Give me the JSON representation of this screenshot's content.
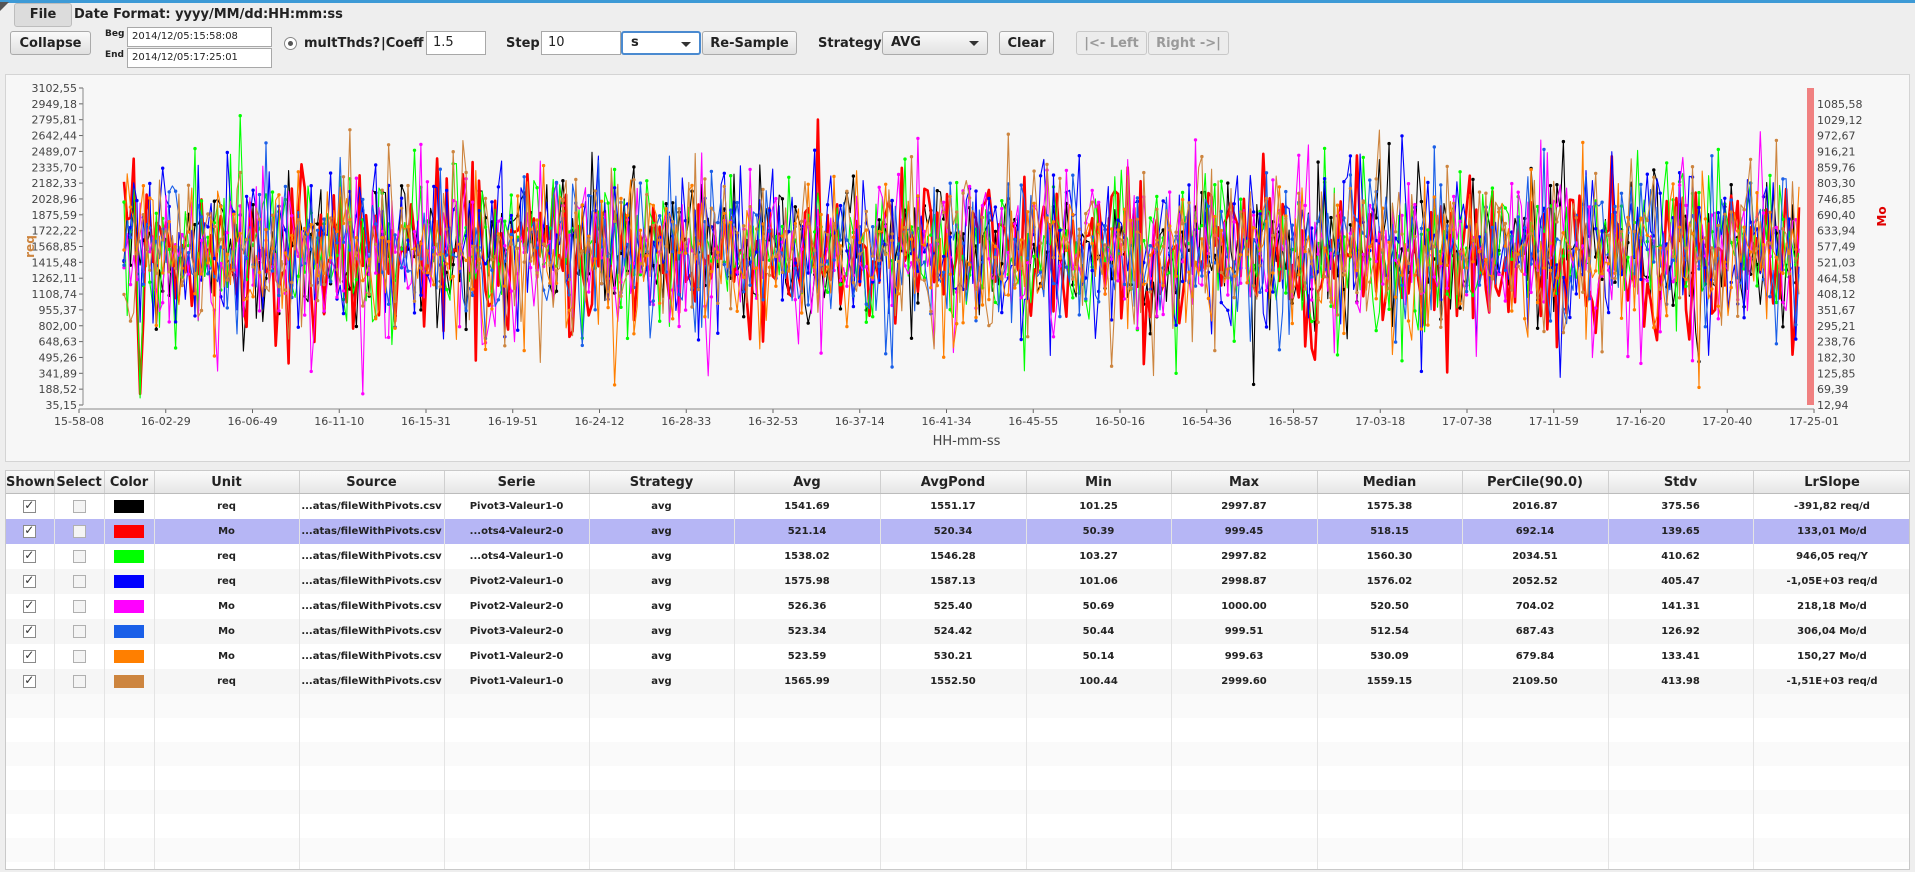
{
  "menu": {
    "file_label": "File",
    "date_format": "Date Format: yyyy/MM/dd:HH:mm:ss"
  },
  "toolbar": {
    "collapse_label": "Collapse",
    "begin_label": "Beg",
    "begin_value": "2014/12/05:15:58:08",
    "end_label": "End",
    "end_value": "2014/12/05:17:25:01",
    "multthds_label": "multThds?",
    "coeff_label": "|Coeff",
    "coeff_value": "1.5",
    "step_label": "Step",
    "step_value": "10",
    "step_unit": "s",
    "resample_label": "Re-Sample",
    "strategy_label": "Strategy",
    "strategy_value": "AVG",
    "clear_label": "Clear",
    "left_label": "|<- Left",
    "right_label": "Right ->|"
  },
  "chart_data": {
    "type": "line",
    "xlabel": "HH-mm-ss",
    "ylabel_left": "req",
    "ylabel_right": "Mo",
    "x_ticks": [
      "15-58-08",
      "16-02-29",
      "16-06-49",
      "16-11-10",
      "16-15-31",
      "16-19-51",
      "16-24-12",
      "16-28-33",
      "16-32-53",
      "16-37-14",
      "16-41-34",
      "16-45-55",
      "16-50-16",
      "16-54-36",
      "16-58-57",
      "17-03-18",
      "17-07-38",
      "17-11-59",
      "17-16-20",
      "17-20-40",
      "17-25-01"
    ],
    "y_left_ticks": [
      "3102,55",
      "2949,18",
      "2795,81",
      "2642,44",
      "2489,07",
      "2335,70",
      "2182,33",
      "2028,96",
      "1875,59",
      "1722,22",
      "1568,85",
      "1415,48",
      "1262,11",
      "1108,74",
      "955,37",
      "802,00",
      "648,63",
      "495,26",
      "341,89",
      "188,52",
      "35,15"
    ],
    "y_right_ticks": [
      "1085,58",
      "1029,12",
      "972,67",
      "916,21",
      "859,76",
      "803,30",
      "746,85",
      "690,40",
      "633,94",
      "577,49",
      "521,03",
      "464,58",
      "408,12",
      "351,67",
      "295,21",
      "238,76",
      "182,30",
      "125,85",
      "69,39",
      "12,94"
    ],
    "ylim_left": [
      35.15,
      3102.55
    ],
    "ylim_right": [
      12.94,
      1085.58
    ],
    "points_per_series": 520,
    "series": [
      {
        "color": "#000000",
        "axis": "left",
        "mean": 1541.69,
        "std": 375.56,
        "min": 101.25,
        "max": 2997.87
      },
      {
        "color": "#ff0000",
        "axis": "right",
        "mean": 521.14,
        "std": 139.65,
        "min": 50.39,
        "max": 999.45
      },
      {
        "color": "#00ff00",
        "axis": "left",
        "mean": 1538.02,
        "std": 410.62,
        "min": 103.27,
        "max": 2997.82
      },
      {
        "color": "#0000ff",
        "axis": "left",
        "mean": 1575.98,
        "std": 405.47,
        "min": 101.06,
        "max": 2998.87
      },
      {
        "color": "#ff00ff",
        "axis": "right",
        "mean": 526.36,
        "std": 141.31,
        "min": 50.69,
        "max": 1000.0
      },
      {
        "color": "#1a5fe8",
        "axis": "right",
        "mean": 523.34,
        "std": 126.92,
        "min": 50.44,
        "max": 999.51
      },
      {
        "color": "#ff7f00",
        "axis": "right",
        "mean": 523.59,
        "std": 133.41,
        "min": 50.14,
        "max": 999.63
      },
      {
        "color": "#cd853f",
        "axis": "left",
        "mean": 1565.99,
        "std": 413.98,
        "min": 100.44,
        "max": 2999.6
      }
    ]
  },
  "table": {
    "headers": [
      "Shown",
      "Select",
      "Color",
      "Unit",
      "Source",
      "Serie",
      "Strategy",
      "Avg",
      "AvgPond",
      "Min",
      "Max",
      "Median",
      "PerCile(90.0)",
      "Stdv",
      "LrSlope"
    ],
    "rows": [
      {
        "shown": true,
        "color": "#000000",
        "unit": "req",
        "source": "...atas/fileWithPivots.csv",
        "serie": "Pivot3-Valeur1-0",
        "strategy": "avg",
        "avg": "1541.69",
        "avgpond": "1551.17",
        "min": "101.25",
        "max": "2997.87",
        "median": "1575.38",
        "percile": "2016.87",
        "stdv": "375.56",
        "lrslope": "-391,82 req/d",
        "selected": false
      },
      {
        "shown": true,
        "color": "#ff0000",
        "unit": "Mo",
        "source": "...atas/fileWithPivots.csv",
        "serie": "...ots4-Valeur2-0",
        "strategy": "avg",
        "avg": "521.14",
        "avgpond": "520.34",
        "min": "50.39",
        "max": "999.45",
        "median": "518.15",
        "percile": "692.14",
        "stdv": "139.65",
        "lrslope": "133,01 Mo/d",
        "selected": true
      },
      {
        "shown": true,
        "color": "#00ff00",
        "unit": "req",
        "source": "...atas/fileWithPivots.csv",
        "serie": "...ots4-Valeur1-0",
        "strategy": "avg",
        "avg": "1538.02",
        "avgpond": "1546.28",
        "min": "103.27",
        "max": "2997.82",
        "median": "1560.30",
        "percile": "2034.51",
        "stdv": "410.62",
        "lrslope": "946,05 req/Y",
        "selected": false
      },
      {
        "shown": true,
        "color": "#0000ff",
        "unit": "req",
        "source": "...atas/fileWithPivots.csv",
        "serie": "Pivot2-Valeur1-0",
        "strategy": "avg",
        "avg": "1575.98",
        "avgpond": "1587.13",
        "min": "101.06",
        "max": "2998.87",
        "median": "1576.02",
        "percile": "2052.52",
        "stdv": "405.47",
        "lrslope": "-1,05E+03 req/d",
        "selected": false
      },
      {
        "shown": true,
        "color": "#ff00ff",
        "unit": "Mo",
        "source": "...atas/fileWithPivots.csv",
        "serie": "Pivot2-Valeur2-0",
        "strategy": "avg",
        "avg": "526.36",
        "avgpond": "525.40",
        "min": "50.69",
        "max": "1000.00",
        "median": "520.50",
        "percile": "704.02",
        "stdv": "141.31",
        "lrslope": "218,18 Mo/d",
        "selected": false
      },
      {
        "shown": true,
        "color": "#1a5fe8",
        "unit": "Mo",
        "source": "...atas/fileWithPivots.csv",
        "serie": "Pivot3-Valeur2-0",
        "strategy": "avg",
        "avg": "523.34",
        "avgpond": "524.42",
        "min": "50.44",
        "max": "999.51",
        "median": "512.54",
        "percile": "687.43",
        "stdv": "126.92",
        "lrslope": "306,04 Mo/d",
        "selected": false
      },
      {
        "shown": true,
        "color": "#ff7f00",
        "unit": "Mo",
        "source": "...atas/fileWithPivots.csv",
        "serie": "Pivot1-Valeur2-0",
        "strategy": "avg",
        "avg": "523.59",
        "avgpond": "530.21",
        "min": "50.14",
        "max": "999.63",
        "median": "530.09",
        "percile": "679.84",
        "stdv": "133.41",
        "lrslope": "150,27 Mo/d",
        "selected": false
      },
      {
        "shown": true,
        "color": "#cd853f",
        "unit": "req",
        "source": "...atas/fileWithPivots.csv",
        "serie": "Pivot1-Valeur1-0",
        "strategy": "avg",
        "avg": "1565.99",
        "avgpond": "1552.50",
        "min": "100.44",
        "max": "2999.60",
        "median": "1559.15",
        "percile": "2109.50",
        "stdv": "413.98",
        "lrslope": "-1,51E+03 req/d",
        "selected": false
      }
    ]
  }
}
